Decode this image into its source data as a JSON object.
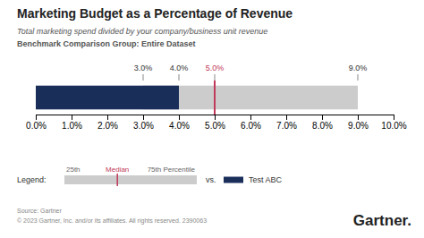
{
  "chart_data": {
    "type": "bar",
    "orientation": "horizontal",
    "title": "Marketing Budget as a Percentage of Revenue",
    "subtitle": "Total marketing spend divided by your company/business unit revenue",
    "caption": "Benchmark Comparison Group: Entire Dataset",
    "xlim": [
      0.0,
      10.0
    ],
    "xticks": [
      {
        "value": 0.0,
        "label": "0.0%"
      },
      {
        "value": 1.0,
        "label": "1.0%"
      },
      {
        "value": 2.0,
        "label": "2.0%"
      },
      {
        "value": 3.0,
        "label": "3.0%"
      },
      {
        "value": 4.0,
        "label": "4.0%"
      },
      {
        "value": 5.0,
        "label": "5.0%"
      },
      {
        "value": 6.0,
        "label": "6.0%"
      },
      {
        "value": 7.0,
        "label": "7.0%"
      },
      {
        "value": 8.0,
        "label": "8.0%"
      },
      {
        "value": 9.0,
        "label": "9.0%"
      },
      {
        "value": 10.0,
        "label": "10.0%"
      }
    ],
    "grid": false,
    "tick_labels": "x",
    "series": [
      {
        "color": "#cccccc",
        "values": [
          9.0
        ],
        "starts": [
          3.0
        ]
      },
      {
        "name": "Test ABC",
        "color": "#1a2e5a",
        "values": [
          4.0
        ]
      }
    ],
    "reference_lines": [
      {
        "value": 5.0,
        "label": "Median",
        "color": "#c0395a"
      }
    ],
    "annotations": [
      {
        "x": 3.0,
        "text": "3.0%",
        "color": "#333333"
      },
      {
        "x": 4.0,
        "text": "4.0%",
        "color": "#333333"
      },
      {
        "x": 5.0,
        "text": "5.0%",
        "color": "#c0395a"
      },
      {
        "x": 9.0,
        "text": "9.0%",
        "color": "#333333"
      }
    ],
    "legend_labels": {
      "heading": "Legend:",
      "low": "25th",
      "high": "75th Percentile",
      "separator": "vs."
    },
    "source": [
      "Source: Gartner",
      "© 2023 Gartner, Inc. and/or its affiliates. All rights reserved. 2390063"
    ],
    "logo": "Gartner."
  }
}
